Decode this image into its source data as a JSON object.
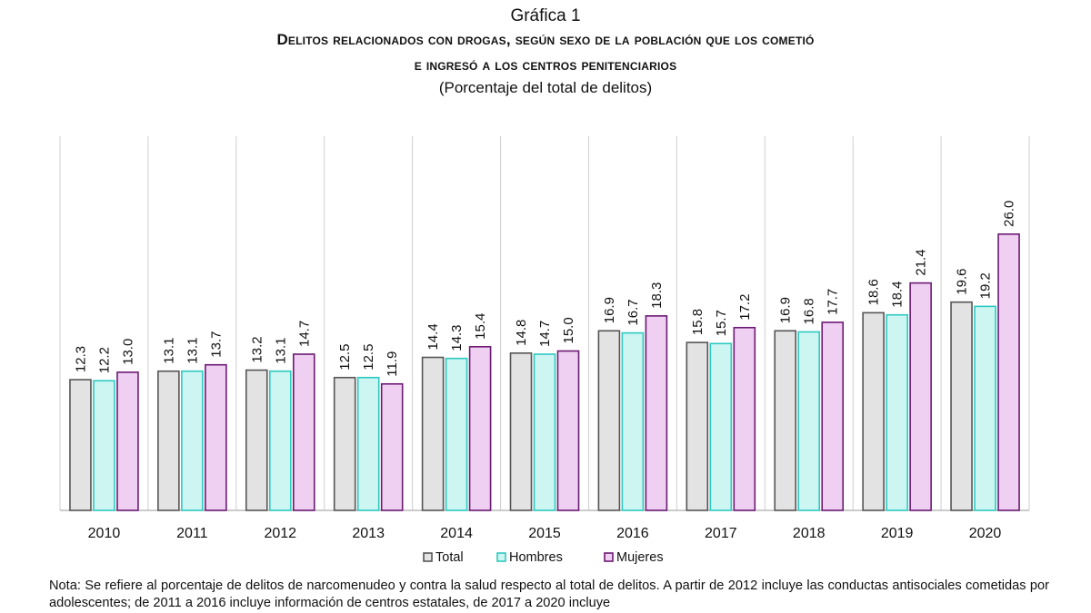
{
  "figure_label": "Gráfica 1",
  "title_line1": "Delitos relacionados con drogas, según sexo de la población que los cometió",
  "title_line2": "e ingresó a los centros penitenciarios",
  "subtitle": "(Porcentaje del total de delitos)",
  "note": "Nota: Se refiere al porcentaje de delitos de narcomenudeo y contra la salud respecto al total de delitos. A partir de 2012 incluye las conductas antisociales cometidas por adolescentes; de 2011 a 2016 incluye información de centros estatales, de 2017 a 2020 incluye",
  "chart_data": {
    "type": "bar",
    "title": "Delitos relacionados con drogas, según sexo de la población que los cometió e ingresó a los centros penitenciarios",
    "subtitle": "(Porcentaje del total de delitos)",
    "xlabel": "",
    "ylabel": "",
    "ylim": [
      0,
      30
    ],
    "grid": false,
    "legend_position": "bottom",
    "categories": [
      "2010",
      "2011",
      "2012",
      "2013",
      "2014",
      "2015",
      "2016",
      "2017",
      "2018",
      "2019",
      "2020"
    ],
    "series": [
      {
        "name": "Total",
        "color": "#e3e3e3",
        "stroke": "#555555",
        "values": [
          12.3,
          13.1,
          13.2,
          12.5,
          14.4,
          14.8,
          16.9,
          15.8,
          16.9,
          18.6,
          19.6
        ]
      },
      {
        "name": "Hombres",
        "color": "#cdf5f2",
        "stroke": "#2ec9c0",
        "values": [
          12.2,
          13.1,
          13.1,
          12.5,
          14.3,
          14.7,
          16.7,
          15.7,
          16.8,
          18.4,
          19.2
        ]
      },
      {
        "name": "Mujeres",
        "color": "#efcff2",
        "stroke": "#6b1a73",
        "values": [
          13.0,
          13.7,
          14.7,
          11.9,
          15.4,
          15.0,
          18.3,
          17.2,
          17.7,
          21.4,
          26.0
        ]
      }
    ]
  }
}
